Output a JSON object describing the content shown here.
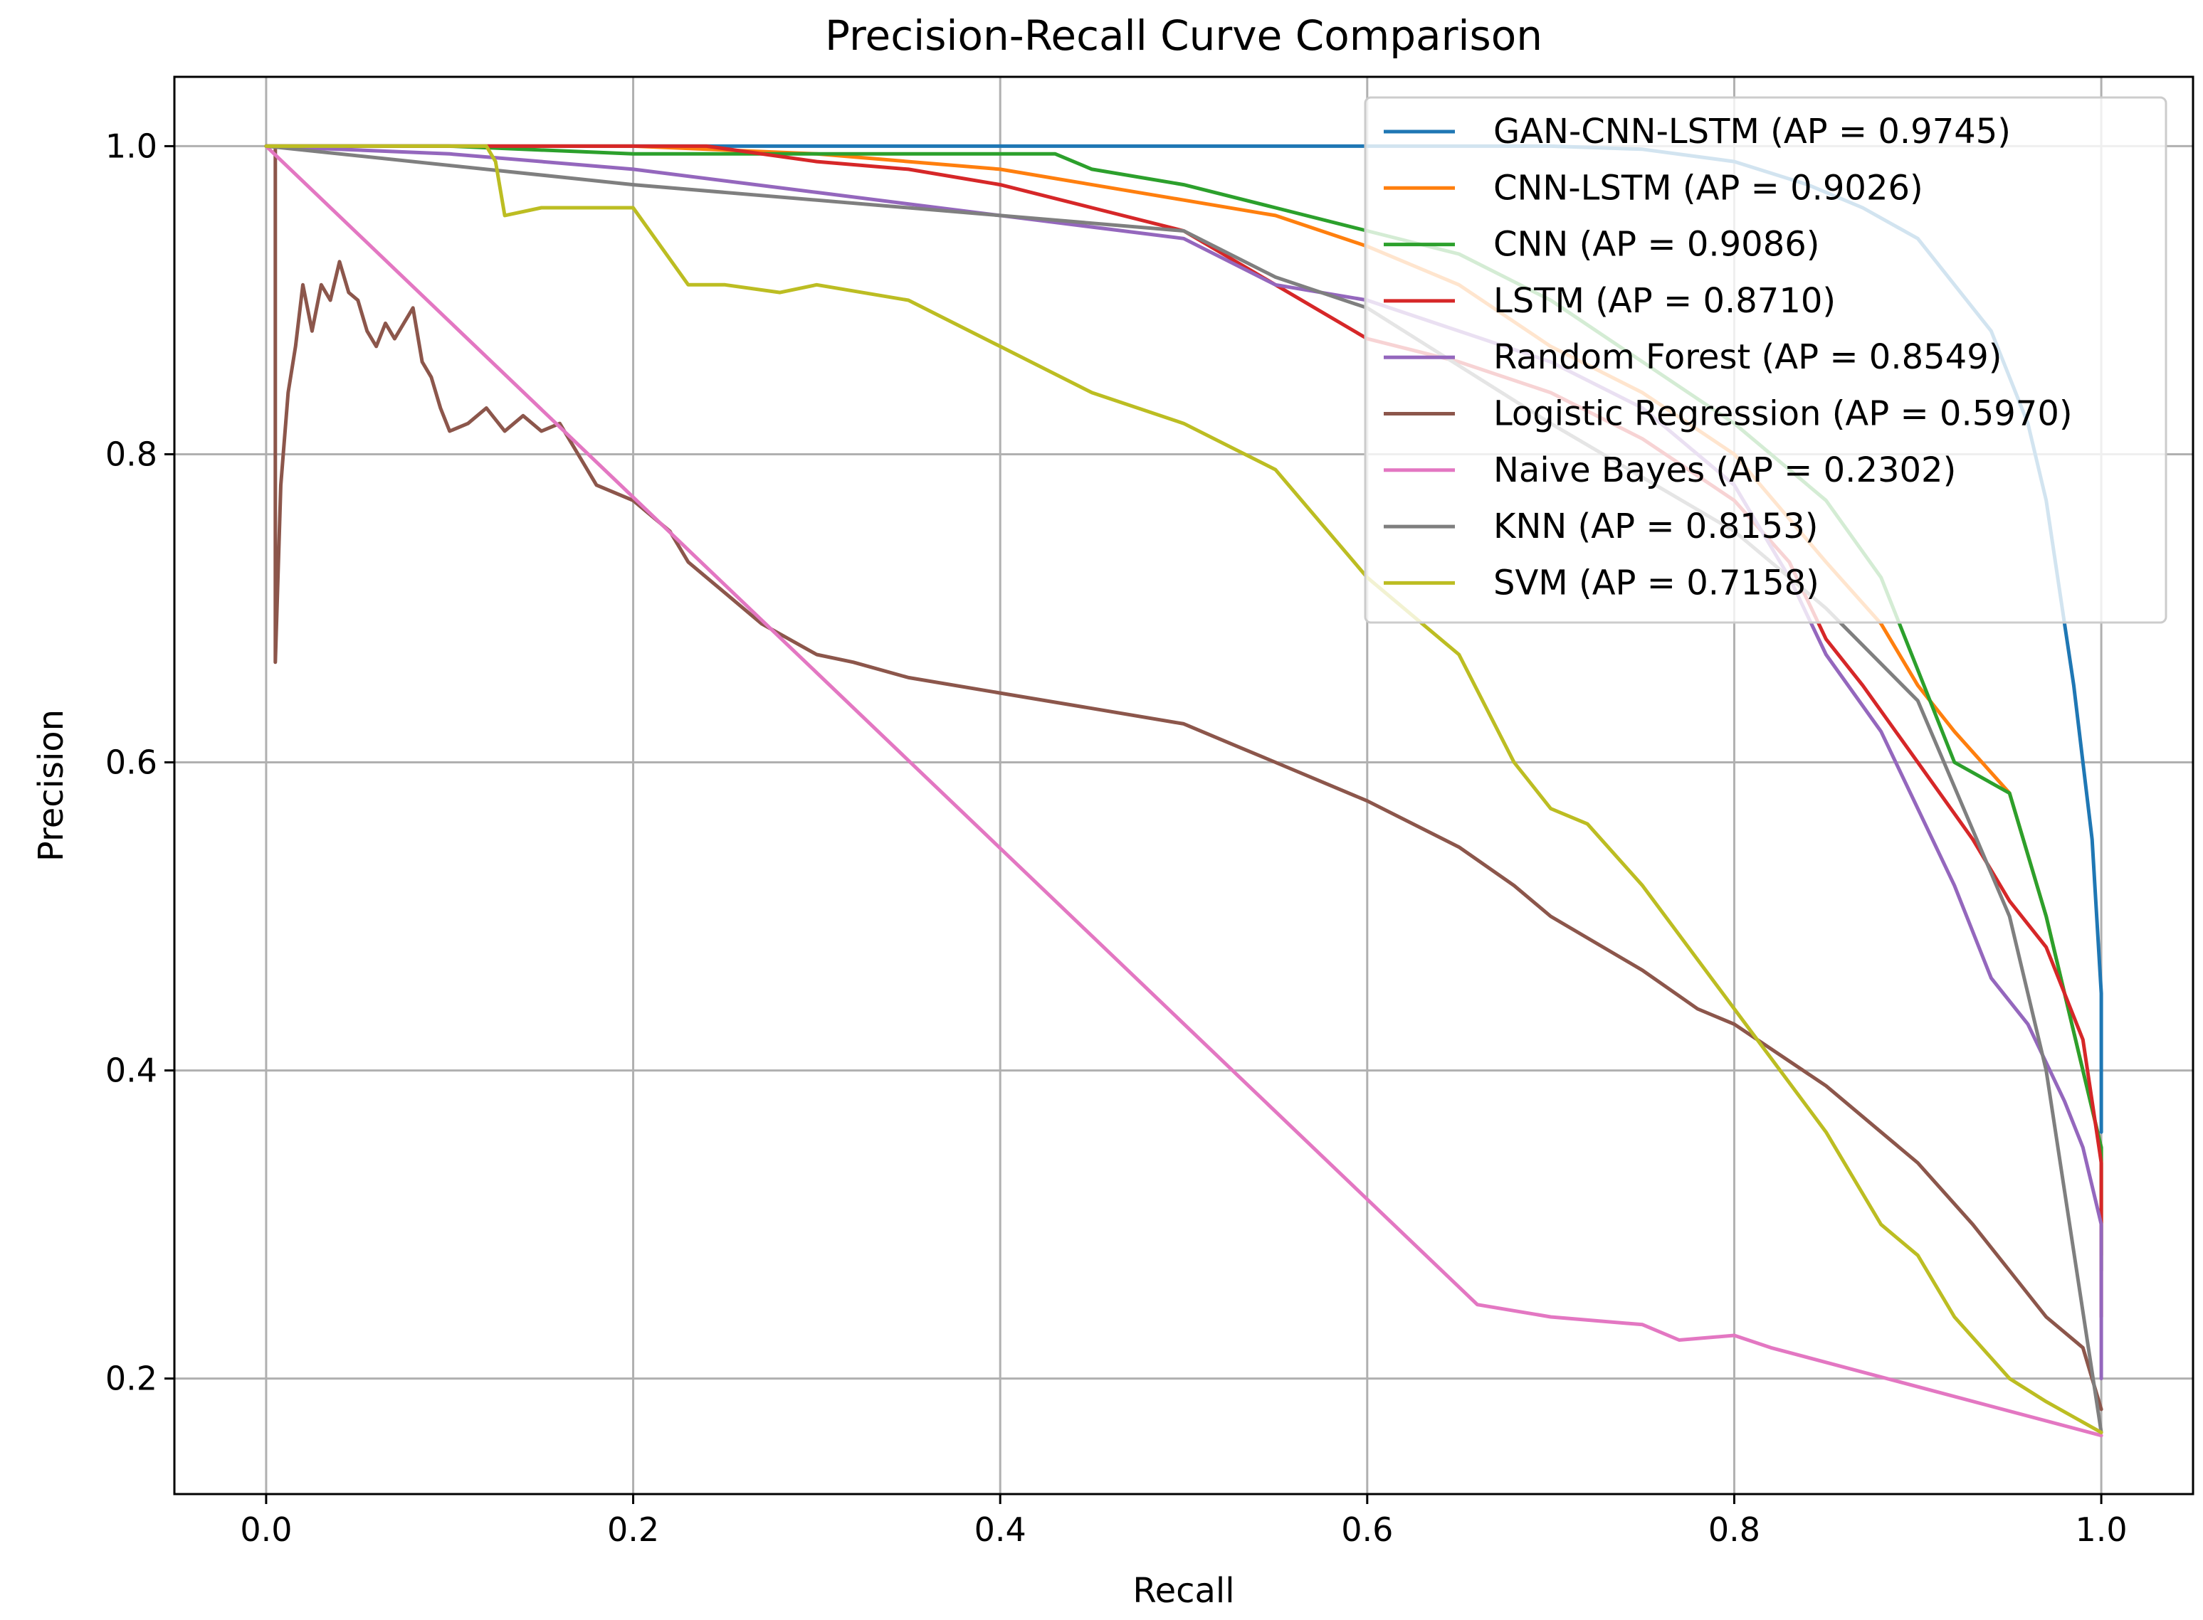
{
  "chart_data": {
    "type": "line",
    "title": "Precision-Recall Curve Comparison",
    "xlabel": "Recall",
    "ylabel": "Precision",
    "xlim": [
      -0.05,
      1.05
    ],
    "ylim": [
      0.125,
      1.045
    ],
    "grid": true,
    "legend_position": "top-right",
    "xticks": [
      {
        "value": 0.0,
        "label": "0.0"
      },
      {
        "value": 0.2,
        "label": "0.2"
      },
      {
        "value": 0.4,
        "label": "0.4"
      },
      {
        "value": 0.6,
        "label": "0.6"
      },
      {
        "value": 0.8,
        "label": "0.8"
      },
      {
        "value": 1.0,
        "label": "1.0"
      }
    ],
    "yticks": [
      {
        "value": 0.2,
        "label": "0.2"
      },
      {
        "value": 0.4,
        "label": "0.4"
      },
      {
        "value": 0.6,
        "label": "0.6"
      },
      {
        "value": 0.8,
        "label": "0.8"
      },
      {
        "value": 1.0,
        "label": "1.0"
      }
    ],
    "series": [
      {
        "name": "GAN-CNN-LSTM (AP = 0.9745)",
        "color": "#1f77b4",
        "x": [
          0.0,
          0.6,
          0.7,
          0.75,
          0.8,
          0.84,
          0.87,
          0.9,
          0.92,
          0.94,
          0.95,
          0.96,
          0.97,
          0.975,
          0.98,
          0.985,
          0.99,
          0.995,
          1.0,
          1.0
        ],
        "y": [
          1.0,
          1.0,
          1.0,
          0.998,
          0.99,
          0.975,
          0.96,
          0.94,
          0.91,
          0.88,
          0.85,
          0.82,
          0.77,
          0.73,
          0.69,
          0.65,
          0.6,
          0.55,
          0.45,
          0.36
        ]
      },
      {
        "name": "CNN-LSTM (AP = 0.9026)",
        "color": "#ff7f0e",
        "x": [
          0.0,
          0.1,
          0.2,
          0.3,
          0.4,
          0.5,
          0.55,
          0.6,
          0.65,
          0.7,
          0.75,
          0.8,
          0.85,
          0.88,
          0.9,
          0.92,
          0.95,
          0.97,
          0.99,
          1.0,
          1.0
        ],
        "y": [
          1.0,
          1.0,
          1.0,
          0.995,
          0.985,
          0.965,
          0.955,
          0.935,
          0.91,
          0.87,
          0.84,
          0.8,
          0.73,
          0.69,
          0.65,
          0.62,
          0.58,
          0.5,
          0.4,
          0.35,
          0.28
        ]
      },
      {
        "name": "CNN (AP = 0.9086)",
        "color": "#2ca02c",
        "x": [
          0.0,
          0.1,
          0.2,
          0.3,
          0.35,
          0.4,
          0.43,
          0.45,
          0.5,
          0.55,
          0.6,
          0.65,
          0.7,
          0.75,
          0.8,
          0.85,
          0.88,
          0.9,
          0.92,
          0.95,
          0.97,
          0.99,
          1.0,
          1.0
        ],
        "y": [
          1.0,
          1.0,
          0.995,
          0.995,
          0.995,
          0.995,
          0.995,
          0.985,
          0.975,
          0.96,
          0.945,
          0.93,
          0.9,
          0.86,
          0.82,
          0.77,
          0.72,
          0.66,
          0.6,
          0.58,
          0.5,
          0.4,
          0.35,
          0.27
        ]
      },
      {
        "name": "LSTM (AP = 0.8710)",
        "color": "#d62728",
        "x": [
          0.0,
          0.1,
          0.2,
          0.24,
          0.3,
          0.35,
          0.4,
          0.45,
          0.5,
          0.55,
          0.6,
          0.65,
          0.7,
          0.75,
          0.8,
          0.83,
          0.85,
          0.87,
          0.9,
          0.93,
          0.95,
          0.97,
          0.99,
          1.0,
          1.0
        ],
        "y": [
          1.0,
          1.0,
          1.0,
          1.0,
          0.99,
          0.985,
          0.975,
          0.96,
          0.945,
          0.91,
          0.875,
          0.86,
          0.84,
          0.81,
          0.77,
          0.73,
          0.68,
          0.65,
          0.6,
          0.55,
          0.51,
          0.48,
          0.42,
          0.34,
          0.24
        ]
      },
      {
        "name": "Random Forest (AP = 0.8549)",
        "color": "#9467bd",
        "x": [
          0.0,
          0.1,
          0.2,
          0.3,
          0.4,
          0.5,
          0.55,
          0.6,
          0.65,
          0.7,
          0.75,
          0.8,
          0.83,
          0.85,
          0.88,
          0.9,
          0.92,
          0.94,
          0.96,
          0.98,
          0.99,
          1.0,
          1.0
        ],
        "y": [
          1.0,
          0.995,
          0.985,
          0.97,
          0.955,
          0.94,
          0.91,
          0.9,
          0.88,
          0.86,
          0.83,
          0.78,
          0.72,
          0.67,
          0.62,
          0.57,
          0.52,
          0.46,
          0.43,
          0.38,
          0.35,
          0.3,
          0.2
        ]
      },
      {
        "name": "Logistic Regression (AP = 0.5970)",
        "color": "#8c564b",
        "x": [
          0.005,
          0.005,
          0.008,
          0.012,
          0.016,
          0.02,
          0.025,
          0.03,
          0.035,
          0.04,
          0.045,
          0.05,
          0.055,
          0.06,
          0.065,
          0.07,
          0.075,
          0.08,
          0.085,
          0.09,
          0.095,
          0.1,
          0.11,
          0.12,
          0.13,
          0.14,
          0.15,
          0.16,
          0.17,
          0.18,
          0.2,
          0.22,
          0.23,
          0.24,
          0.25,
          0.27,
          0.3,
          0.32,
          0.35,
          0.4,
          0.45,
          0.5,
          0.53,
          0.55,
          0.6,
          0.65,
          0.68,
          0.7,
          0.75,
          0.78,
          0.8,
          0.85,
          0.88,
          0.9,
          0.93,
          0.95,
          0.97,
          0.99,
          1.0
        ],
        "y": [
          0.998,
          0.665,
          0.78,
          0.84,
          0.87,
          0.91,
          0.88,
          0.91,
          0.9,
          0.925,
          0.905,
          0.9,
          0.88,
          0.87,
          0.885,
          0.875,
          0.885,
          0.895,
          0.86,
          0.85,
          0.83,
          0.815,
          0.82,
          0.83,
          0.815,
          0.825,
          0.815,
          0.82,
          0.8,
          0.78,
          0.77,
          0.75,
          0.73,
          0.72,
          0.71,
          0.69,
          0.67,
          0.665,
          0.655,
          0.645,
          0.635,
          0.625,
          0.61,
          0.6,
          0.575,
          0.545,
          0.52,
          0.5,
          0.465,
          0.44,
          0.43,
          0.39,
          0.36,
          0.34,
          0.3,
          0.27,
          0.24,
          0.22,
          0.18
        ]
      },
      {
        "name": "Naive Bayes (AP = 0.2302)",
        "color": "#e377c2",
        "x": [
          0.0,
          0.66,
          0.7,
          0.75,
          0.77,
          0.8,
          0.82,
          1.0
        ],
        "y": [
          1.0,
          0.248,
          0.24,
          0.235,
          0.225,
          0.228,
          0.22,
          0.163
        ]
      },
      {
        "name": "KNN (AP = 0.8153)",
        "color": "#7f7f7f",
        "x": [
          0.0,
          0.2,
          0.4,
          0.5,
          0.55,
          0.6,
          0.7,
          0.8,
          0.85,
          0.9,
          0.95,
          0.97,
          1.0
        ],
        "y": [
          1.0,
          0.975,
          0.955,
          0.945,
          0.915,
          0.895,
          0.82,
          0.75,
          0.7,
          0.64,
          0.5,
          0.4,
          0.165
        ]
      },
      {
        "name": "SVM (AP = 0.7158)",
        "color": "#bcbd22",
        "x": [
          0.0,
          0.12,
          0.125,
          0.13,
          0.15,
          0.2,
          0.23,
          0.25,
          0.28,
          0.3,
          0.35,
          0.4,
          0.45,
          0.5,
          0.55,
          0.6,
          0.65,
          0.68,
          0.7,
          0.72,
          0.75,
          0.8,
          0.85,
          0.88,
          0.9,
          0.92,
          0.95,
          0.97,
          1.0
        ],
        "y": [
          1.0,
          1.0,
          0.99,
          0.955,
          0.96,
          0.96,
          0.91,
          0.91,
          0.905,
          0.91,
          0.9,
          0.87,
          0.84,
          0.82,
          0.79,
          0.72,
          0.67,
          0.6,
          0.57,
          0.56,
          0.52,
          0.44,
          0.36,
          0.3,
          0.28,
          0.24,
          0.2,
          0.185,
          0.165
        ]
      }
    ]
  }
}
